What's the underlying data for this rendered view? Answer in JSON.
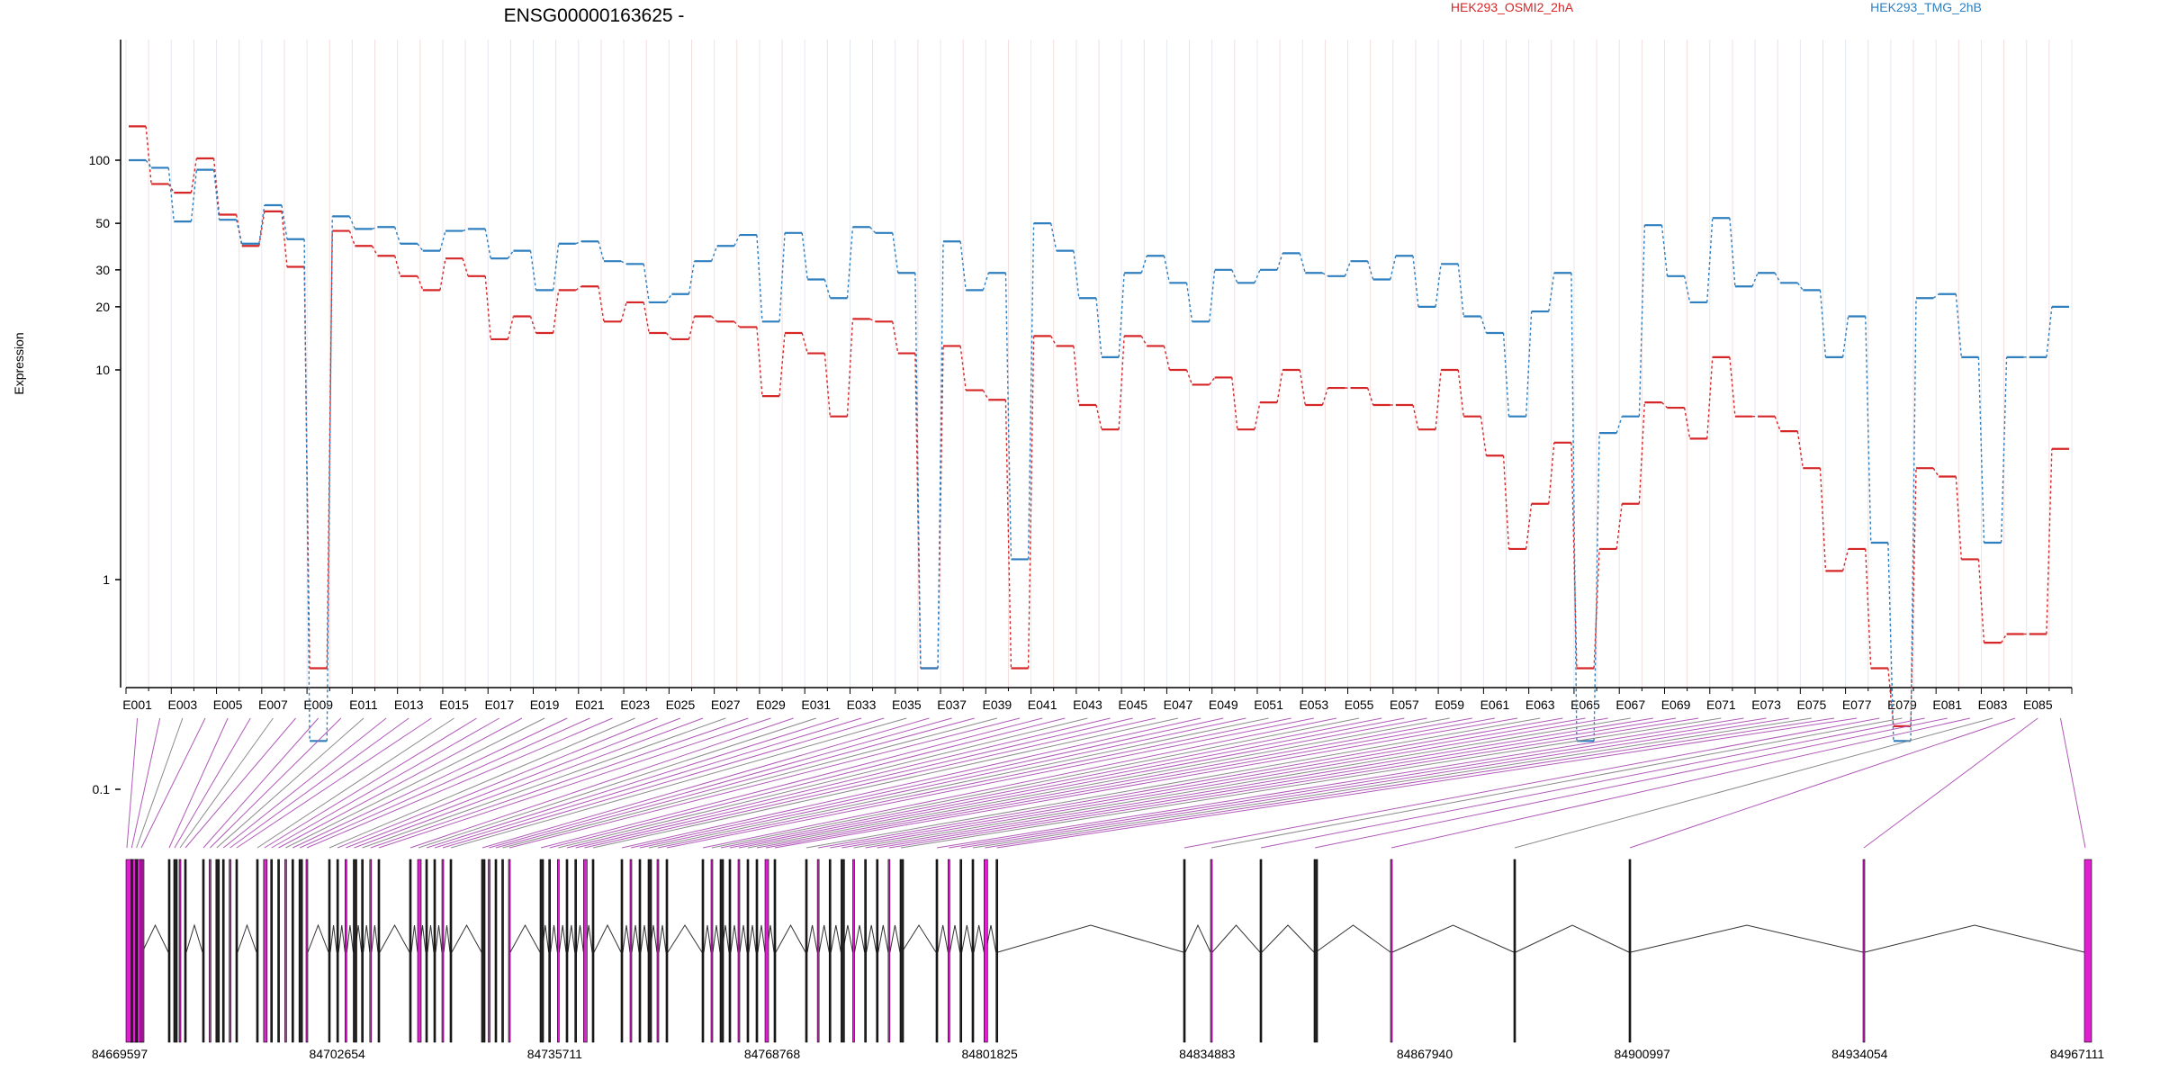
{
  "chart_data": {
    "type": "line",
    "title": "ENSG00000163625 -",
    "ylabel": "Expression",
    "y_scale": "log",
    "y_ticks": [
      0.1,
      1,
      10,
      20,
      30,
      50,
      100
    ],
    "y_tick_labels": [
      "0.1",
      "1",
      "10",
      "20",
      "30",
      "50",
      "100"
    ],
    "grid": "vertical",
    "legend": "top",
    "categories": [
      "E001",
      "E002",
      "E003",
      "E004",
      "E005",
      "E006",
      "E007",
      "E008",
      "E009",
      "E010",
      "E011",
      "E012",
      "E013",
      "E014",
      "E015",
      "E016",
      "E017",
      "E018",
      "E019",
      "E020",
      "E021",
      "E022",
      "E023",
      "E024",
      "E025",
      "E026",
      "E027",
      "E028",
      "E029",
      "E030",
      "E031",
      "E032",
      "E033",
      "E034",
      "E035",
      "E036",
      "E037",
      "E038",
      "E039",
      "E040",
      "E041",
      "E042",
      "E043",
      "E044",
      "E045",
      "E046",
      "E047",
      "E048",
      "E049",
      "E050",
      "E051",
      "E052",
      "E053",
      "E054",
      "E055",
      "E056",
      "E057",
      "E058",
      "E059",
      "E060",
      "E061",
      "E062",
      "E063",
      "E064",
      "E065",
      "E066",
      "E067",
      "E068",
      "E069",
      "E070",
      "E071",
      "E072",
      "E073",
      "E074",
      "E075",
      "E076",
      "E077",
      "E078",
      "E079",
      "E080",
      "E081",
      "E082",
      "E083",
      "E084",
      "E085",
      "E086"
    ],
    "x_tick_labels": [
      "E001",
      "E003",
      "E005",
      "E007",
      "E009",
      "E011",
      "E013",
      "E015",
      "E017",
      "E019",
      "E021",
      "E023",
      "E025",
      "E027",
      "E029",
      "E031",
      "E033",
      "E035",
      "E037",
      "E039",
      "E041",
      "E043",
      "E045",
      "E047",
      "E049",
      "E051",
      "E053",
      "E055",
      "E057",
      "E059",
      "E061",
      "E063",
      "E065",
      "E067",
      "E069",
      "E071",
      "E073",
      "E075",
      "E077",
      "E079",
      "E081",
      "E083",
      "E085"
    ],
    "series": [
      {
        "name": "HEK293_OSMI2_2hA",
        "color": "#d62728",
        "values": [
          145,
          77,
          70,
          102,
          55,
          39,
          57,
          31,
          0.07,
          46,
          39,
          35,
          28,
          24,
          34,
          28,
          14,
          18,
          15,
          24,
          25,
          17,
          21,
          15,
          14,
          18,
          17,
          16,
          7.5,
          15,
          12,
          6,
          17.5,
          17,
          12,
          0.07,
          13,
          8,
          7.2,
          0.07,
          14.5,
          13,
          6.8,
          5.2,
          14.5,
          13,
          10,
          8.5,
          9.2,
          5.2,
          7,
          10,
          6.8,
          8.2,
          8.2,
          6.8,
          6.8,
          5.2,
          10,
          6,
          3.9,
          1.4,
          2.3,
          4.5,
          0.07,
          1.4,
          2.3,
          7,
          6.6,
          4.7,
          11.5,
          6,
          6,
          5.1,
          3.4,
          1.1,
          1.4,
          0.07,
          0.2,
          3.4,
          3.1,
          1.25,
          0.5,
          0.55,
          0.55,
          4.2
        ]
      },
      {
        "name": "HEK293_TMG_2hB",
        "color": "#2f7fbf",
        "values": [
          100,
          92,
          51,
          90,
          52,
          40,
          61,
          42,
          0.17,
          54,
          47,
          48,
          40,
          37,
          46,
          47,
          34,
          37,
          24,
          40,
          41,
          33,
          32,
          21,
          23,
          33,
          39,
          44,
          17,
          45,
          27,
          22,
          48,
          45,
          29,
          0.07,
          41,
          24,
          29,
          1.25,
          50,
          37,
          22,
          11.5,
          29,
          35,
          26,
          17,
          30,
          26,
          30,
          36,
          29,
          28,
          33,
          27,
          35,
          20,
          32,
          18,
          15,
          6,
          19,
          29,
          0.17,
          5,
          6,
          49,
          28,
          21,
          53,
          25,
          29,
          26,
          24,
          11.5,
          18,
          1.5,
          0.17,
          22,
          23,
          11.5,
          1.5,
          11.5,
          11.5,
          20
        ]
      }
    ],
    "gene_model": {
      "coordinate_labels": [
        "84669597",
        "84702654",
        "84735711",
        "84768768",
        "84801825",
        "84834883",
        "84867940",
        "84900997",
        "84934054",
        "84967111"
      ]
    }
  }
}
